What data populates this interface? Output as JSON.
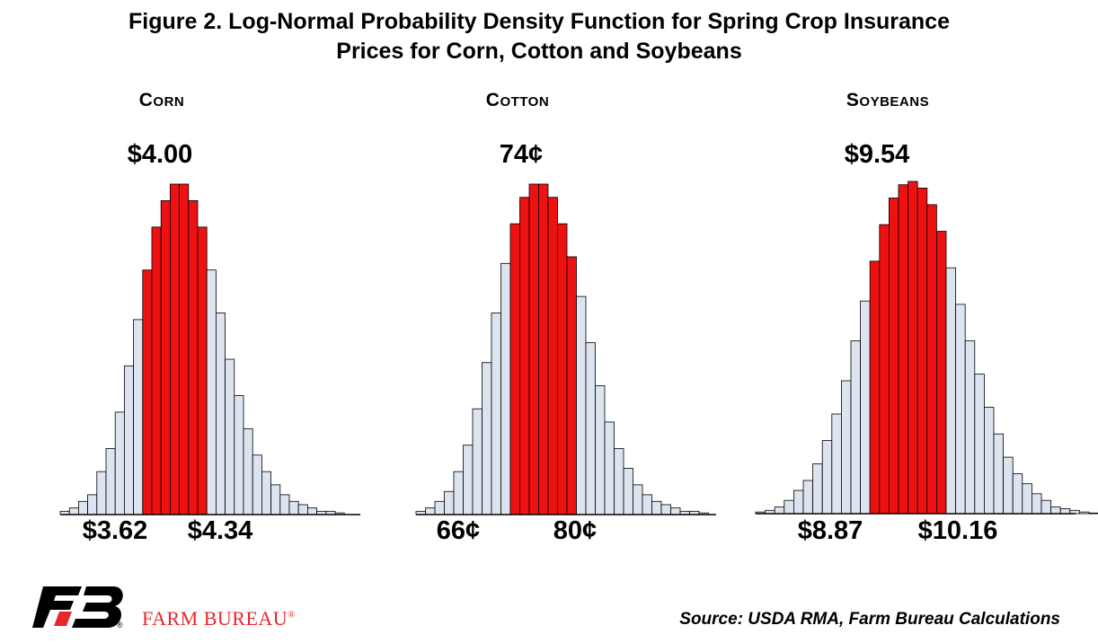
{
  "title": {
    "line1": "Figure 2. Log-Normal Probability Density Function for Spring Crop Insurance",
    "line2": "Prices for Corn, Cotton and Soybeans"
  },
  "colors": {
    "highlight": "#ee1111",
    "fill": "#dce4f0",
    "stroke": "#000000",
    "brand": "#e8262b"
  },
  "chart_data": [
    {
      "type": "bar",
      "title": "Corn",
      "center_label": "$4.00",
      "low_label": "$3.62",
      "high_label": "$4.34",
      "values": [
        0.01,
        0.02,
        0.04,
        0.06,
        0.13,
        0.2,
        0.31,
        0.45,
        0.59,
        0.74,
        0.87,
        0.95,
        1.0,
        1.0,
        0.95,
        0.87,
        0.74,
        0.61,
        0.47,
        0.36,
        0.26,
        0.18,
        0.13,
        0.09,
        0.06,
        0.04,
        0.03,
        0.02,
        0.01,
        0.01,
        0.005
      ],
      "highlight_range": [
        9,
        15
      ]
    },
    {
      "type": "bar",
      "title": "Cotton",
      "center_label": "74¢",
      "low_label": "66¢",
      "high_label": "80¢",
      "values": [
        0.01,
        0.02,
        0.04,
        0.07,
        0.13,
        0.21,
        0.32,
        0.46,
        0.61,
        0.76,
        0.88,
        0.96,
        1.0,
        1.0,
        0.96,
        0.88,
        0.78,
        0.66,
        0.52,
        0.39,
        0.28,
        0.2,
        0.14,
        0.09,
        0.06,
        0.04,
        0.03,
        0.02,
        0.01,
        0.01,
        0.005
      ],
      "highlight_range": [
        10,
        16
      ]
    },
    {
      "type": "bar",
      "title": "Soybeans",
      "center_label": "$9.54",
      "low_label": "$8.87",
      "high_label": "$10.16",
      "values": [
        0.005,
        0.01,
        0.02,
        0.04,
        0.07,
        0.1,
        0.15,
        0.22,
        0.3,
        0.4,
        0.52,
        0.64,
        0.76,
        0.87,
        0.95,
        0.99,
        1.0,
        0.98,
        0.93,
        0.85,
        0.74,
        0.63,
        0.52,
        0.42,
        0.32,
        0.24,
        0.17,
        0.12,
        0.09,
        0.06,
        0.04,
        0.02,
        0.015,
        0.01,
        0.005,
        0.002
      ],
      "highlight_range": [
        12,
        19
      ]
    }
  ],
  "footer": {
    "brand": "FARM BUREAU",
    "brand_mark": "®",
    "logo_mark": "FB",
    "source": "Source: USDA RMA, Farm Bureau Calculations"
  }
}
